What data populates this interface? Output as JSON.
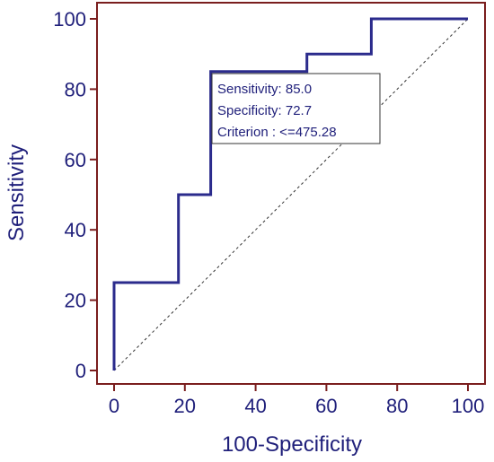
{
  "chart_data": {
    "type": "line",
    "xlabel": "100-Specificity",
    "ylabel": "Sensitivity",
    "xlim": [
      0,
      100
    ],
    "ylim": [
      0,
      100
    ],
    "x_ticks": [
      0,
      20,
      40,
      60,
      80,
      100
    ],
    "y_ticks": [
      0,
      20,
      40,
      60,
      80,
      100
    ],
    "grid": false,
    "colors": {
      "frame": "#7a1e1e",
      "curve": "#2b2b8c",
      "reference": "#333333",
      "text": "#1f1f7a"
    },
    "series": [
      {
        "x": [
          0,
          0,
          18.2,
          18.2,
          27.3,
          27.3,
          54.5,
          54.5,
          72.7,
          72.7,
          100
        ],
        "y": [
          0,
          25,
          25,
          50,
          50,
          85,
          85,
          90,
          90,
          100,
          100
        ]
      }
    ],
    "reference_line": {
      "x": [
        0,
        100
      ],
      "y": [
        0,
        100
      ],
      "style": "dashed"
    },
    "annotation": {
      "lines": [
        "Sensitivity: 85.0",
        "Specificity: 72.7",
        "Criterion : <=475.28"
      ]
    }
  }
}
